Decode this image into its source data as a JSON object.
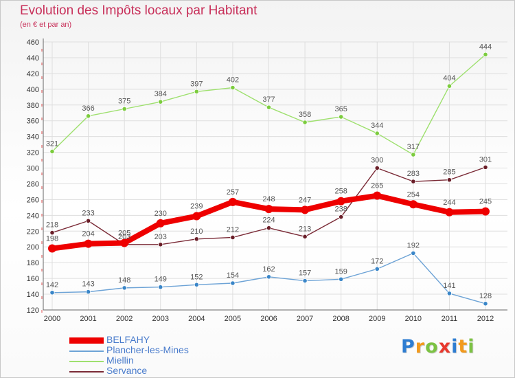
{
  "title": "Evolution des Impôts locaux par Habitant",
  "subtitle": "(en € et par an)",
  "logo": {
    "text": "Proxiti",
    "letters": [
      {
        "ch": "P",
        "color": "#2e7dd1"
      },
      {
        "ch": "r",
        "color": "#f29a1d"
      },
      {
        "ch": "o",
        "color": "#7cc243"
      },
      {
        "ch": "x",
        "color": "#e8392e"
      },
      {
        "ch": "i",
        "color": "#2e7dd1"
      },
      {
        "ch": "t",
        "color": "#f29a1d"
      },
      {
        "ch": "i",
        "color": "#7cc243"
      }
    ]
  },
  "chart_data": {
    "type": "line",
    "title": "Evolution des Impôts locaux par Habitant",
    "subtitle": "(en € et par an)",
    "x": [
      "2000",
      "2001",
      "2002",
      "2003",
      "2004",
      "2005",
      "2006",
      "2007",
      "2008",
      "2009",
      "2010",
      "2011",
      "2012"
    ],
    "ylim": [
      120,
      460
    ],
    "yticks": [
      120,
      140,
      160,
      180,
      200,
      220,
      240,
      260,
      280,
      300,
      320,
      340,
      360,
      380,
      400,
      420,
      440,
      460
    ],
    "grid": true,
    "legend_position": "bottom-left",
    "series": [
      {
        "name": "BELFAHY",
        "color": "#ee0000",
        "marker": "#ee0000",
        "emphasis": true,
        "values": [
          198,
          204,
          205,
          230,
          239,
          257,
          248,
          247,
          258,
          265,
          254,
          244,
          245
        ]
      },
      {
        "name": "Plancher-les-Mines",
        "color": "#6da3d6",
        "marker": "#3a86c8",
        "emphasis": false,
        "values": [
          142,
          143,
          148,
          149,
          152,
          154,
          162,
          157,
          159,
          172,
          192,
          141,
          128
        ]
      },
      {
        "name": "Miellin",
        "color": "#9ee06e",
        "marker": "#7ccc3e",
        "emphasis": false,
        "values": [
          321,
          366,
          375,
          384,
          397,
          402,
          377,
          358,
          365,
          344,
          317,
          404,
          444
        ]
      },
      {
        "name": "Servance",
        "color": "#7a2a36",
        "marker": "#6a1e28",
        "emphasis": false,
        "values": [
          218,
          233,
          203,
          203,
          210,
          212,
          224,
          213,
          238,
          300,
          283,
          285,
          301
        ]
      }
    ]
  }
}
